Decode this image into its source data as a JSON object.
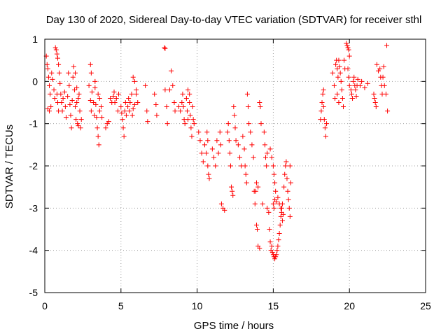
{
  "chart_data": {
    "type": "scatter",
    "title": "Day 130 of 2020, Sidereal Day-to-day VTEC variation (SDTVAR) for receiver sthl",
    "xlabel": "GPS time / hours",
    "ylabel": "SDTVAR / TECUs",
    "xlim": [
      0,
      25
    ],
    "ylim": [
      -5,
      1
    ],
    "xticks": [
      0,
      5,
      10,
      15,
      20,
      25
    ],
    "yticks": [
      -5,
      -4,
      -3,
      -2,
      -1,
      0,
      1
    ],
    "xtick_labels": [
      "0",
      "5",
      "10",
      "15",
      "20",
      "25"
    ],
    "ytick_labels": [
      "-5",
      "-4",
      "-3",
      "-2",
      "-1",
      "0",
      "1"
    ],
    "grid": true,
    "marker": "+",
    "colors": {
      "points": "#ff0000",
      "axes": "#000000",
      "grid": "#a0a0a0",
      "background": "#ffffff"
    },
    "series": [
      {
        "name": "sthl",
        "points": [
          [
            0.1,
            0.6
          ],
          [
            0.15,
            0.4
          ],
          [
            0.2,
            0.3
          ],
          [
            0.25,
            0.1
          ],
          [
            0.3,
            -0.1
          ],
          [
            0.35,
            -0.3
          ],
          [
            0.4,
            -0.6
          ],
          [
            0.3,
            -0.7
          ],
          [
            0.2,
            -0.65
          ],
          [
            0.45,
            0.2
          ],
          [
            0.5,
            0.05
          ],
          [
            0.6,
            -0.2
          ],
          [
            0.65,
            -0.4
          ],
          [
            0.7,
            0.8
          ],
          [
            0.75,
            0.75
          ],
          [
            0.8,
            0.65
          ],
          [
            0.85,
            0.55
          ],
          [
            0.9,
            0.4
          ],
          [
            0.95,
            0.2
          ],
          [
            1.0,
            -0.05
          ],
          [
            1.05,
            -0.3
          ],
          [
            1.1,
            -0.5
          ],
          [
            1.15,
            -0.7
          ],
          [
            0.8,
            -0.3
          ],
          [
            0.85,
            -0.5
          ],
          [
            0.9,
            -0.7
          ],
          [
            1.2,
            -0.4
          ],
          [
            1.3,
            -0.25
          ],
          [
            1.35,
            -0.6
          ],
          [
            1.4,
            -0.85
          ],
          [
            1.5,
            -0.35
          ],
          [
            1.55,
            0.2
          ],
          [
            1.6,
            -0.1
          ],
          [
            1.65,
            -0.55
          ],
          [
            1.7,
            -0.8
          ],
          [
            1.75,
            -1.1
          ],
          [
            1.8,
            -0.45
          ],
          [
            1.85,
            0.1
          ],
          [
            1.9,
            0.35
          ],
          [
            1.95,
            -0.2
          ],
          [
            2.0,
            -0.6
          ],
          [
            2.05,
            -0.9
          ],
          [
            2.1,
            -0.5
          ],
          [
            2.15,
            -1.0
          ],
          [
            2.2,
            -1.05
          ],
          [
            2.25,
            -0.3
          ],
          [
            2.3,
            -0.7
          ],
          [
            2.35,
            -1.1
          ],
          [
            2.4,
            -0.9
          ],
          [
            2.0,
            0.2
          ],
          [
            2.1,
            -0.15
          ],
          [
            2.2,
            -0.4
          ],
          [
            2.9,
            -0.1
          ],
          [
            3.0,
            -0.45
          ],
          [
            3.05,
            -0.7
          ],
          [
            3.1,
            -0.25
          ],
          [
            3.2,
            -0.5
          ],
          [
            3.25,
            -0.8
          ],
          [
            3.3,
            0.0
          ],
          [
            3.3,
            -0.15
          ],
          [
            3.35,
            -0.55
          ],
          [
            3.4,
            -0.85
          ],
          [
            3.45,
            -1.1
          ],
          [
            3.5,
            -1.3
          ],
          [
            3.55,
            -1.5
          ],
          [
            3.5,
            -0.3
          ],
          [
            3.6,
            -0.4
          ],
          [
            3.6,
            -0.7
          ],
          [
            3.7,
            -0.6
          ],
          [
            3.75,
            -0.85
          ],
          [
            3.0,
            0.4
          ],
          [
            3.05,
            0.2
          ],
          [
            4.0,
            -1.1
          ],
          [
            4.1,
            -1.0
          ],
          [
            4.2,
            -0.95
          ],
          [
            4.3,
            -0.4
          ],
          [
            4.4,
            -0.5
          ],
          [
            4.5,
            -0.35
          ],
          [
            4.55,
            -0.25
          ],
          [
            4.6,
            -0.5
          ],
          [
            4.7,
            -0.4
          ],
          [
            4.8,
            -0.7
          ],
          [
            4.85,
            -0.3
          ],
          [
            5.0,
            -0.6
          ],
          [
            5.05,
            -0.75
          ],
          [
            5.1,
            -0.9
          ],
          [
            5.15,
            -1.1
          ],
          [
            5.2,
            -1.3
          ],
          [
            5.25,
            -0.7
          ],
          [
            5.3,
            -0.5
          ],
          [
            5.35,
            -0.8
          ],
          [
            5.45,
            -0.6
          ],
          [
            5.5,
            -0.4
          ],
          [
            5.55,
            -0.7
          ],
          [
            5.6,
            -0.5
          ],
          [
            5.7,
            -0.3
          ],
          [
            5.8,
            -0.65
          ],
          [
            5.9,
            -0.55
          ],
          [
            6.0,
            -0.2
          ],
          [
            5.8,
            0.1
          ],
          [
            5.9,
            0.0
          ],
          [
            6.0,
            -0.3
          ],
          [
            6.1,
            -0.5
          ],
          [
            5.75,
            -0.8
          ],
          [
            6.6,
            -0.1
          ],
          [
            6.7,
            -0.7
          ],
          [
            6.75,
            -0.95
          ],
          [
            7.2,
            -0.3
          ],
          [
            7.3,
            -0.55
          ],
          [
            7.35,
            -0.8
          ],
          [
            7.85,
            0.8
          ],
          [
            7.9,
            0.78
          ],
          [
            7.9,
            -0.2
          ],
          [
            8.0,
            -0.6
          ],
          [
            8.05,
            -1.0
          ],
          [
            8.2,
            -0.2
          ],
          [
            8.3,
            0.25
          ],
          [
            8.4,
            -0.1
          ],
          [
            8.5,
            -0.5
          ],
          [
            8.55,
            -0.7
          ],
          [
            8.8,
            -0.6
          ],
          [
            8.9,
            -0.7
          ],
          [
            9.0,
            -0.5
          ],
          [
            9.05,
            -0.3
          ],
          [
            9.1,
            -0.6
          ],
          [
            9.15,
            -0.9
          ],
          [
            9.2,
            -1.0
          ],
          [
            9.3,
            -0.4
          ],
          [
            9.35,
            -0.7
          ],
          [
            9.4,
            -0.9
          ],
          [
            9.5,
            -0.5
          ],
          [
            9.55,
            -0.8
          ],
          [
            9.6,
            -1.1
          ],
          [
            9.65,
            -1.3
          ],
          [
            9.7,
            -0.6
          ],
          [
            9.75,
            -0.9
          ],
          [
            9.8,
            -1.0
          ],
          [
            9.4,
            -0.2
          ],
          [
            9.5,
            -0.3
          ],
          [
            10.1,
            -1.2
          ],
          [
            10.2,
            -1.4
          ],
          [
            10.3,
            -1.7
          ],
          [
            10.4,
            -1.9
          ],
          [
            10.5,
            -1.5
          ],
          [
            10.6,
            -1.7
          ],
          [
            10.7,
            -2.0
          ],
          [
            10.75,
            -2.2
          ],
          [
            10.8,
            -2.3
          ],
          [
            10.65,
            -1.2
          ],
          [
            10.7,
            -1.4
          ],
          [
            11.0,
            -1.6
          ],
          [
            11.1,
            -1.8
          ],
          [
            11.2,
            -2.0
          ],
          [
            11.3,
            -1.4
          ],
          [
            11.4,
            -1.7
          ],
          [
            11.5,
            -1.2
          ],
          [
            11.55,
            -1.5
          ],
          [
            11.6,
            -2.9
          ],
          [
            11.7,
            -3.0
          ],
          [
            11.8,
            -3.05
          ],
          [
            12.0,
            -1.2
          ],
          [
            12.05,
            -1.0
          ],
          [
            12.1,
            -1.4
          ],
          [
            12.15,
            -1.7
          ],
          [
            12.2,
            -2.0
          ],
          [
            12.25,
            -2.5
          ],
          [
            12.3,
            -2.6
          ],
          [
            12.35,
            -2.7
          ],
          [
            12.4,
            -0.6
          ],
          [
            12.45,
            -0.8
          ],
          [
            12.5,
            -1.1
          ],
          [
            12.55,
            -1.4
          ],
          [
            12.7,
            -1.5
          ],
          [
            12.8,
            -1.8
          ],
          [
            12.9,
            -2.0
          ],
          [
            13.0,
            -1.3
          ],
          [
            13.1,
            -1.6
          ],
          [
            13.15,
            -2.0
          ],
          [
            13.2,
            -2.2
          ],
          [
            13.25,
            -2.4
          ],
          [
            13.3,
            -0.3
          ],
          [
            13.35,
            -0.6
          ],
          [
            13.4,
            -1.0
          ],
          [
            13.5,
            -1.2
          ],
          [
            13.6,
            -1.5
          ],
          [
            13.7,
            -1.8
          ],
          [
            13.75,
            -2.6
          ],
          [
            13.8,
            -2.9
          ],
          [
            13.85,
            -2.6
          ],
          [
            13.9,
            -2.4
          ],
          [
            14.0,
            -2.5
          ],
          [
            14.1,
            -0.5
          ],
          [
            14.15,
            -0.6
          ],
          [
            14.2,
            -1.0
          ],
          [
            13.9,
            -3.4
          ],
          [
            13.95,
            -3.5
          ],
          [
            14.0,
            -3.9
          ],
          [
            14.1,
            -3.95
          ],
          [
            14.3,
            -2.9
          ],
          [
            14.4,
            -1.2
          ],
          [
            14.45,
            -1.5
          ],
          [
            14.5,
            -1.8
          ],
          [
            14.55,
            -2.0
          ],
          [
            14.6,
            -1.7
          ],
          [
            14.6,
            -3.0
          ],
          [
            14.7,
            -3.1
          ],
          [
            14.75,
            -3.5
          ],
          [
            14.8,
            -3.8
          ],
          [
            14.85,
            -4.0
          ],
          [
            14.9,
            -3.9
          ],
          [
            14.95,
            -4.05
          ],
          [
            15.0,
            -4.1
          ],
          [
            15.05,
            -4.15
          ],
          [
            15.1,
            -4.2
          ],
          [
            15.15,
            -4.15
          ],
          [
            15.2,
            -4.1
          ],
          [
            15.25,
            -4.0
          ],
          [
            15.3,
            -3.9
          ],
          [
            15.35,
            -3.75
          ],
          [
            15.4,
            -3.6
          ],
          [
            15.45,
            -3.4
          ],
          [
            15.5,
            -3.2
          ],
          [
            15.55,
            -3.0
          ],
          [
            15.6,
            -2.9
          ],
          [
            15.0,
            -2.9
          ],
          [
            15.05,
            -3.0
          ],
          [
            15.1,
            -2.8
          ],
          [
            15.2,
            -2.85
          ],
          [
            15.3,
            -2.75
          ],
          [
            15.4,
            -2.9
          ],
          [
            15.5,
            -3.0
          ],
          [
            15.55,
            -3.1
          ],
          [
            15.6,
            -3.3
          ],
          [
            15.65,
            -3.15
          ],
          [
            14.8,
            -1.6
          ],
          [
            14.9,
            -1.8
          ],
          [
            15.0,
            -2.0
          ],
          [
            15.05,
            -2.2
          ],
          [
            15.1,
            -2.4
          ],
          [
            15.15,
            -2.6
          ],
          [
            15.7,
            -2.5
          ],
          [
            15.75,
            -2.2
          ],
          [
            15.8,
            -2.0
          ],
          [
            15.85,
            -1.9
          ],
          [
            15.9,
            -2.3
          ],
          [
            15.95,
            -2.6
          ],
          [
            16.0,
            -2.8
          ],
          [
            16.05,
            -3.0
          ],
          [
            16.1,
            -3.2
          ],
          [
            16.15,
            -2.4
          ],
          [
            16.1,
            -2.0
          ],
          [
            18.1,
            -0.9
          ],
          [
            18.15,
            -0.7
          ],
          [
            18.2,
            -0.5
          ],
          [
            18.25,
            -0.3
          ],
          [
            18.3,
            -0.6
          ],
          [
            18.35,
            -0.9
          ],
          [
            18.4,
            -1.1
          ],
          [
            18.45,
            -1.3
          ],
          [
            18.5,
            -1.0
          ],
          [
            18.3,
            -0.2
          ],
          [
            18.9,
            0.2
          ],
          [
            19.0,
            -0.1
          ],
          [
            19.05,
            -0.4
          ],
          [
            19.1,
            0.4
          ],
          [
            19.15,
            0.5
          ],
          [
            19.2,
            0.3
          ],
          [
            19.25,
            0.1
          ],
          [
            19.3,
            0.5
          ],
          [
            19.35,
            0.35
          ],
          [
            19.4,
            0.2
          ],
          [
            19.45,
            0.0
          ],
          [
            19.5,
            -0.2
          ],
          [
            19.55,
            -0.4
          ],
          [
            19.6,
            -0.6
          ],
          [
            19.65,
            0.5
          ],
          [
            19.7,
            0.3
          ],
          [
            19.2,
            -0.3
          ],
          [
            19.3,
            -0.5
          ],
          [
            19.8,
            0.9
          ],
          [
            19.85,
            0.85
          ],
          [
            19.9,
            0.8
          ],
          [
            19.95,
            0.75
          ],
          [
            20.0,
            0.6
          ],
          [
            19.9,
            0.3
          ],
          [
            19.95,
            0.1
          ],
          [
            20.0,
            -0.1
          ],
          [
            20.1,
            -0.2
          ],
          [
            20.15,
            -0.3
          ],
          [
            20.2,
            -0.4
          ],
          [
            20.25,
            0.0
          ],
          [
            20.3,
            0.1
          ],
          [
            20.35,
            -0.1
          ],
          [
            20.4,
            -0.2
          ],
          [
            20.45,
            -0.35
          ],
          [
            20.5,
            -0.1
          ],
          [
            20.55,
            0.05
          ],
          [
            20.7,
            -0.1
          ],
          [
            20.8,
            0.0
          ],
          [
            21.0,
            -0.15
          ],
          [
            21.2,
            -0.05
          ],
          [
            21.6,
            -0.3
          ],
          [
            21.65,
            -0.4
          ],
          [
            21.7,
            -0.5
          ],
          [
            21.75,
            -0.6
          ],
          [
            21.8,
            0.4
          ],
          [
            21.9,
            0.25
          ],
          [
            22.0,
            0.3
          ],
          [
            22.05,
            0.1
          ],
          [
            22.1,
            -0.1
          ],
          [
            22.15,
            -0.3
          ],
          [
            22.2,
            0.1
          ],
          [
            22.25,
            0.35
          ],
          [
            22.3,
            -0.1
          ],
          [
            22.4,
            -0.3
          ],
          [
            22.45,
            0.85
          ],
          [
            22.5,
            -0.7
          ]
        ]
      }
    ]
  }
}
